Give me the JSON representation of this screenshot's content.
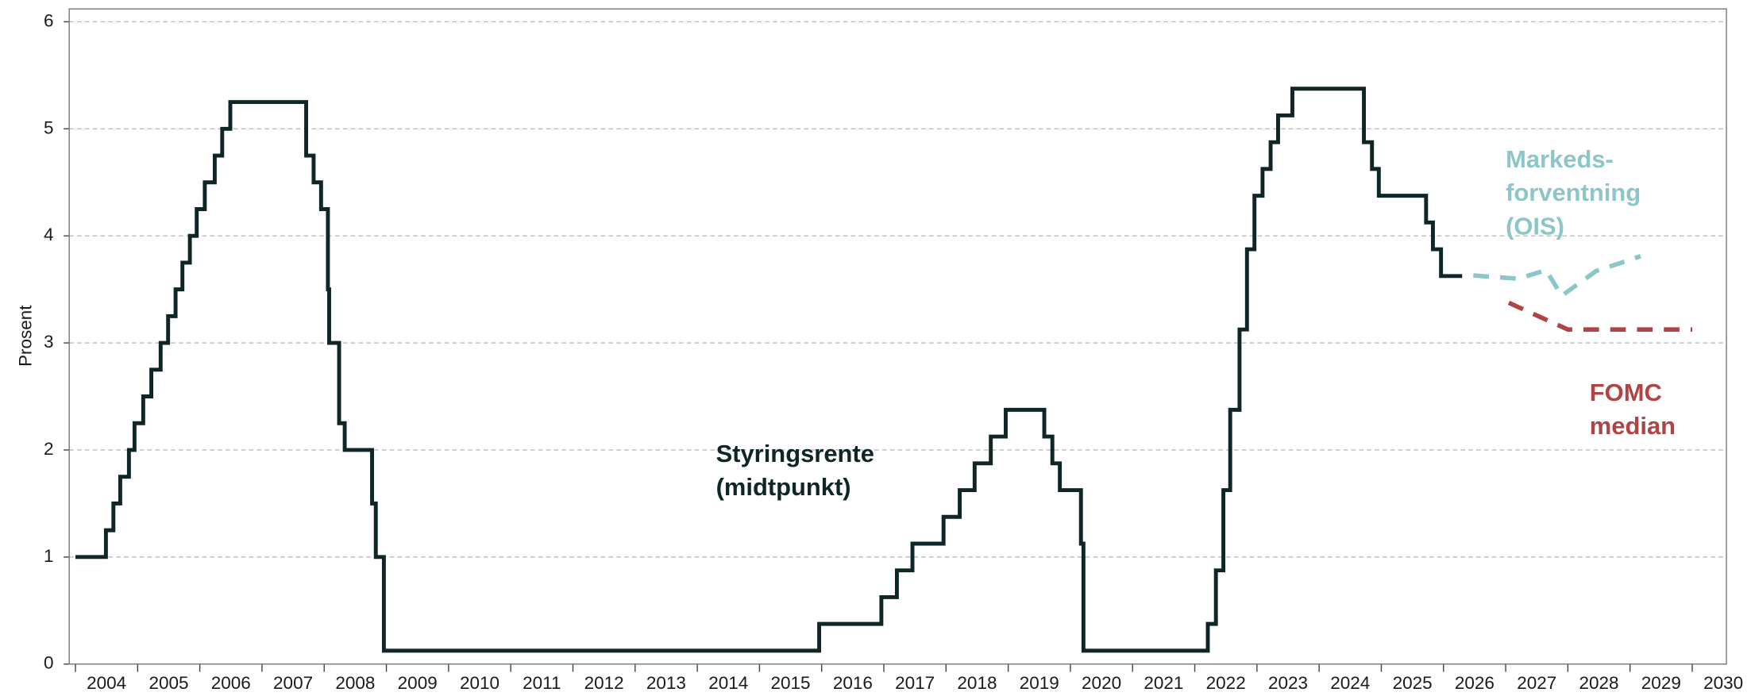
{
  "chart_data": {
    "type": "line",
    "y_label": "Prosent",
    "xlim": [
      2003.9,
      2030.55
    ],
    "ylim": [
      0,
      6.12
    ],
    "xticks": [
      2004,
      2005,
      2006,
      2007,
      2008,
      2009,
      2010,
      2011,
      2012,
      2013,
      2014,
      2015,
      2016,
      2017,
      2018,
      2019,
      2020,
      2021,
      2022,
      2023,
      2024,
      2025,
      2026,
      2027,
      2028,
      2029,
      2030
    ],
    "yticks": [
      0,
      1,
      2,
      3,
      4,
      5,
      6
    ],
    "grid": true,
    "series": [
      {
        "name": "Styringsrente (midtpunkt)",
        "color": "#102626",
        "step": true,
        "dashed": false,
        "x": [
          2004.0,
          2004.49,
          2004.61,
          2004.72,
          2004.86,
          2004.95,
          2005.09,
          2005.22,
          2005.37,
          2005.49,
          2005.61,
          2005.72,
          2005.84,
          2005.95,
          2006.08,
          2006.24,
          2006.36,
          2006.49,
          2007.71,
          2007.83,
          2007.95,
          2008.06,
          2008.08,
          2008.24,
          2008.33,
          2008.77,
          2008.83,
          2008.96,
          2015.96,
          2016.96,
          2017.21,
          2017.46,
          2017.96,
          2018.22,
          2018.46,
          2018.72,
          2018.96,
          2019.58,
          2019.71,
          2019.83,
          2020.17,
          2020.21,
          2022.21,
          2022.34,
          2022.46,
          2022.57,
          2022.72,
          2022.84,
          2022.96,
          2023.09,
          2023.22,
          2023.34,
          2023.57,
          2024.72,
          2024.85,
          2024.96,
          2025.72,
          2025.83,
          2025.96,
          2026.3
        ],
        "values": [
          1,
          1.25,
          1.5,
          1.75,
          2,
          2.25,
          2.5,
          2.75,
          3,
          3.25,
          3.5,
          3.75,
          4,
          4.25,
          4.5,
          4.75,
          5,
          5.25,
          4.75,
          4.5,
          4.25,
          3.5,
          3,
          2.25,
          2,
          1.5,
          1,
          0.125,
          0.375,
          0.625,
          0.875,
          1.125,
          1.375,
          1.625,
          1.875,
          2.125,
          2.375,
          2.125,
          1.875,
          1.625,
          1.125,
          0.125,
          0.375,
          0.875,
          1.625,
          2.375,
          3.125,
          3.875,
          4.375,
          4.625,
          4.875,
          5.125,
          5.375,
          4.875,
          4.625,
          4.375,
          4.125,
          3.875,
          3.625,
          3.625
        ]
      },
      {
        "name": "Markeds-forventning (OIS)",
        "color": "#8cc6c8",
        "step": false,
        "dashed": true,
        "x": [
          2026.48,
          2027.2,
          2027.65,
          2027.9,
          2028.45,
          2029.17
        ],
        "values": [
          3.63,
          3.6,
          3.68,
          3.44,
          3.67,
          3.81
        ]
      },
      {
        "name": "FOMC median",
        "color": "#b04444",
        "step": false,
        "dashed": true,
        "x": [
          2027.05,
          2028.0,
          2030.0
        ],
        "values": [
          3.375,
          3.125,
          3.125
        ]
      }
    ],
    "annotations": [
      {
        "lines": [
          "Styringsrente",
          "(midtpunkt)"
        ],
        "color": "#102626",
        "x": 2014.3,
        "y": 1.95
      },
      {
        "lines": [
          "Markeds-",
          "forventning",
          "(OIS)"
        ],
        "color": "#8cc6c8",
        "x": 2027.0,
        "y": 4.7
      },
      {
        "lines": [
          "FOMC",
          "median"
        ],
        "color": "#b04444",
        "x": 2028.35,
        "y": 2.52
      }
    ]
  }
}
